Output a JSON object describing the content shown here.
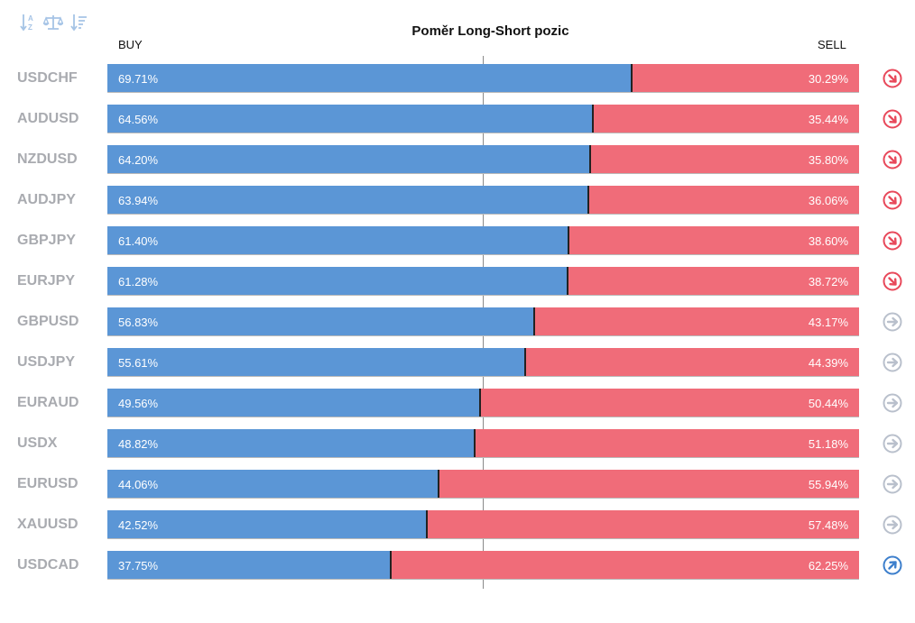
{
  "toolbar": {
    "buttons": [
      {
        "name": "sort-alpha-icon"
      },
      {
        "name": "balance-icon"
      },
      {
        "name": "sort-desc-icon"
      }
    ]
  },
  "chart_data": {
    "type": "bar",
    "orientation": "horizontal-stacked",
    "title": "Poměr Long-Short pozic",
    "buy_label": "BUY",
    "sell_label": "SELL",
    "colors": {
      "buy": "#5b96d6",
      "sell": "#f06c79",
      "down": "#e8485a",
      "neutral": "#b9c0cc",
      "up": "#3d7fcc"
    },
    "rows": [
      {
        "symbol": "USDCHF",
        "buy": 69.71,
        "sell": 30.29,
        "buy_text": "69.71%",
        "sell_text": "30.29%",
        "trend": "down"
      },
      {
        "symbol": "AUDUSD",
        "buy": 64.56,
        "sell": 35.44,
        "buy_text": "64.56%",
        "sell_text": "35.44%",
        "trend": "down"
      },
      {
        "symbol": "NZDUSD",
        "buy": 64.2,
        "sell": 35.8,
        "buy_text": "64.20%",
        "sell_text": "35.80%",
        "trend": "down"
      },
      {
        "symbol": "AUDJPY",
        "buy": 63.94,
        "sell": 36.06,
        "buy_text": "63.94%",
        "sell_text": "36.06%",
        "trend": "down"
      },
      {
        "symbol": "GBPJPY",
        "buy": 61.4,
        "sell": 38.6,
        "buy_text": "61.40%",
        "sell_text": "38.60%",
        "trend": "down"
      },
      {
        "symbol": "EURJPY",
        "buy": 61.28,
        "sell": 38.72,
        "buy_text": "61.28%",
        "sell_text": "38.72%",
        "trend": "down"
      },
      {
        "symbol": "GBPUSD",
        "buy": 56.83,
        "sell": 43.17,
        "buy_text": "56.83%",
        "sell_text": "43.17%",
        "trend": "neutral"
      },
      {
        "symbol": "USDJPY",
        "buy": 55.61,
        "sell": 44.39,
        "buy_text": "55.61%",
        "sell_text": "44.39%",
        "trend": "neutral"
      },
      {
        "symbol": "EURAUD",
        "buy": 49.56,
        "sell": 50.44,
        "buy_text": "49.56%",
        "sell_text": "50.44%",
        "trend": "neutral"
      },
      {
        "symbol": "USDX",
        "buy": 48.82,
        "sell": 51.18,
        "buy_text": "48.82%",
        "sell_text": "51.18%",
        "trend": "neutral"
      },
      {
        "symbol": "EURUSD",
        "buy": 44.06,
        "sell": 55.94,
        "buy_text": "44.06%",
        "sell_text": "55.94%",
        "trend": "neutral"
      },
      {
        "symbol": "XAUUSD",
        "buy": 42.52,
        "sell": 57.48,
        "buy_text": "42.52%",
        "sell_text": "57.48%",
        "trend": "neutral"
      },
      {
        "symbol": "USDCAD",
        "buy": 37.75,
        "sell": 62.25,
        "buy_text": "37.75%",
        "sell_text": "62.25%",
        "trend": "up"
      }
    ]
  }
}
